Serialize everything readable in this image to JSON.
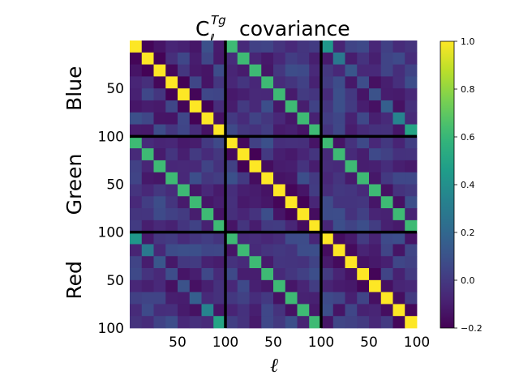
{
  "chart_data": {
    "type": "heatmap",
    "title_prefix": "C",
    "title_superscript": "Tg",
    "title_subscript": "ℓ",
    "title_suffix": "covariance",
    "xlabel": "ℓ",
    "block_labels": [
      "Blue",
      "Green",
      "Red"
    ],
    "block_tick_labels": [
      "50",
      "100"
    ],
    "bins_per_block": 8,
    "colorbar": {
      "vmin": -0.2,
      "vmax": 1.0,
      "ticks": [
        "1.0",
        "0.8",
        "0.6",
        "0.4",
        "0.2",
        "0.0",
        "−0.2"
      ],
      "colormap": "viridis"
    },
    "diagonal_value": 1.0,
    "cross_block_diagonal": {
      "Blue-Green": [
        0.62,
        0.62,
        0.62,
        0.62,
        0.62,
        0.62,
        0.62,
        0.62
      ],
      "Blue-Red": [
        0.44,
        0.28,
        0.12,
        0.08,
        0.1,
        0.16,
        0.34,
        0.5
      ],
      "Green-Red": [
        0.62,
        0.62,
        0.62,
        0.62,
        0.62,
        0.62,
        0.62,
        0.62
      ]
    },
    "off_diagonal_range": [
      -0.2,
      0.2
    ],
    "grid": false
  }
}
